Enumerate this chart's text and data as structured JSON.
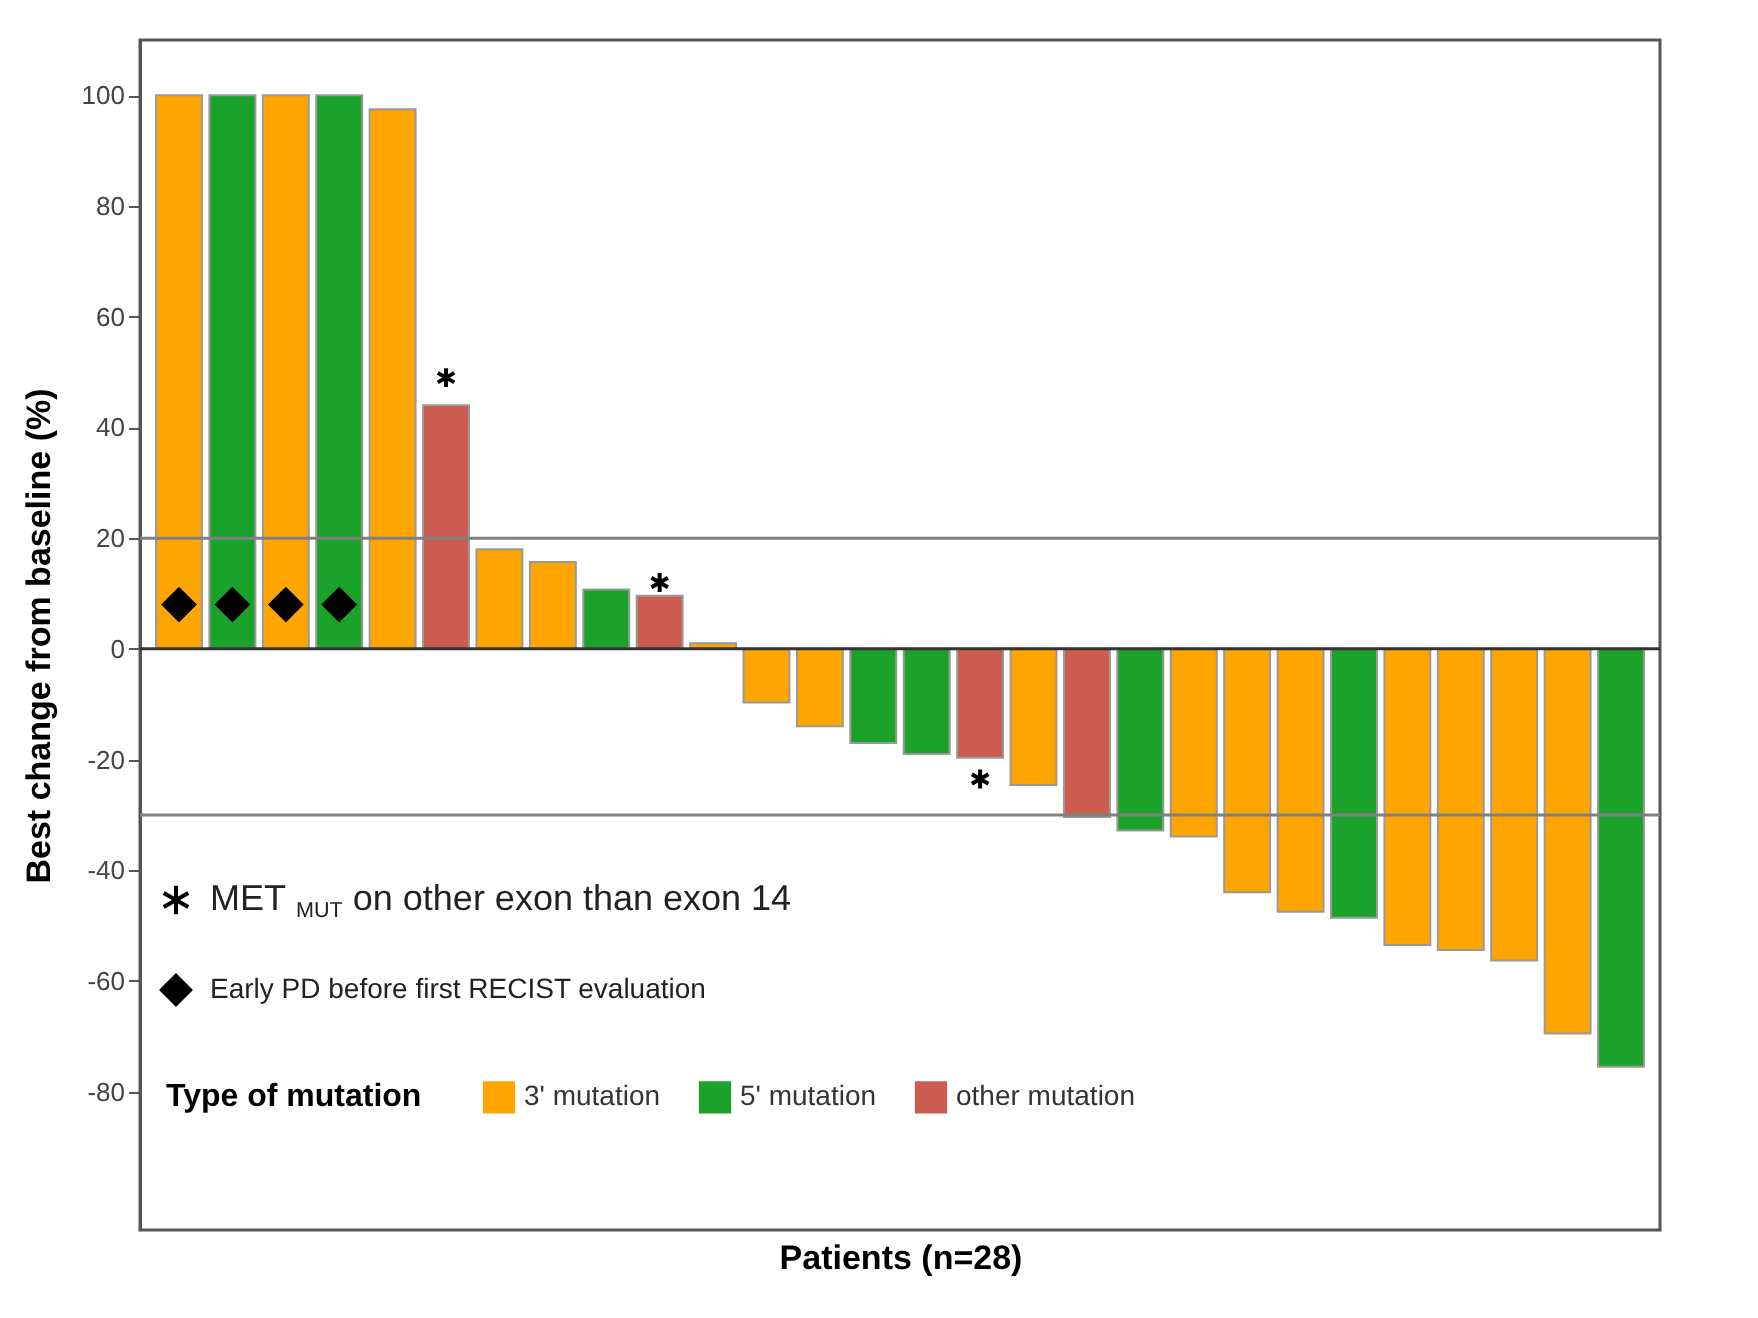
{
  "chart_data": {
    "type": "bar",
    "stacked": true,
    "xlabel": "Patients (n=28)",
    "ylabel": "Best change from baseline (%)",
    "legend_title": "Type of mutation",
    "legend": "bottom left",
    "tick_labels": "y",
    "grid": false,
    "categories": [
      null,
      null,
      null,
      null,
      null,
      null,
      null,
      null,
      null,
      null,
      null,
      null,
      null,
      null,
      null,
      null,
      null,
      null,
      null,
      null,
      null,
      null,
      null,
      null,
      null,
      null,
      null,
      null
    ],
    "ylim": [
      -105,
      110
    ],
    "yticks": [
      -80,
      -60,
      -40,
      -20,
      0,
      20,
      40,
      60,
      80,
      100
    ],
    "series": [
      {
        "name": "3' mutation",
        "color": "#ffa500",
        "values": [
          100,
          null,
          100,
          null,
          97.5,
          null,
          18,
          15.7,
          null,
          null,
          1,
          -9.7,
          -14,
          null,
          null,
          null,
          -24.6,
          null,
          null,
          -33.9,
          -44,
          -47.5,
          null,
          -53.5,
          -54.4,
          -56.3,
          -69.5,
          null
        ]
      },
      {
        "name": "5' mutation",
        "color": "#1aa22a",
        "values": [
          null,
          100,
          null,
          100,
          null,
          null,
          null,
          null,
          10.7,
          null,
          null,
          null,
          null,
          -17,
          -19,
          null,
          null,
          null,
          -32.8,
          null,
          null,
          null,
          -48.6,
          null,
          null,
          null,
          null,
          -75.5
        ]
      },
      {
        "name": "other mutation",
        "color": "#cd5c50",
        "values": [
          null,
          null,
          null,
          null,
          null,
          44,
          null,
          null,
          null,
          9.6,
          null,
          null,
          null,
          null,
          null,
          -19.7,
          null,
          -30.4,
          null,
          null,
          null,
          null,
          null,
          null,
          null,
          null,
          null,
          null
        ]
      },
      {
        "name": "MET $_{MUT}$ on other exon than exon 14",
        "type": "scatter",
        "marker": "cross",
        "color": "#000000",
        "values": [
          null,
          null,
          null,
          null,
          null,
          49,
          null,
          null,
          null,
          12,
          null,
          null,
          null,
          null,
          null,
          -23.5,
          null,
          null,
          null,
          null,
          null,
          null,
          null,
          null,
          null,
          null,
          null,
          null
        ]
      },
      {
        "name": "Early PD before first RECIST evaluation",
        "type": "scatter",
        "marker": "diamond",
        "color": "#000000",
        "values": [
          8,
          8,
          8,
          8,
          null,
          null,
          null,
          null,
          null,
          null,
          null,
          null,
          null,
          null,
          null,
          null,
          null,
          null,
          null,
          null,
          null,
          null,
          null,
          null,
          null,
          null,
          null,
          null
        ]
      }
    ],
    "ref_lines": [
      {
        "axis": "y",
        "value": 20,
        "color": "#808080"
      },
      {
        "axis": "y",
        "value": -30,
        "color": "#808080"
      }
    ]
  }
}
